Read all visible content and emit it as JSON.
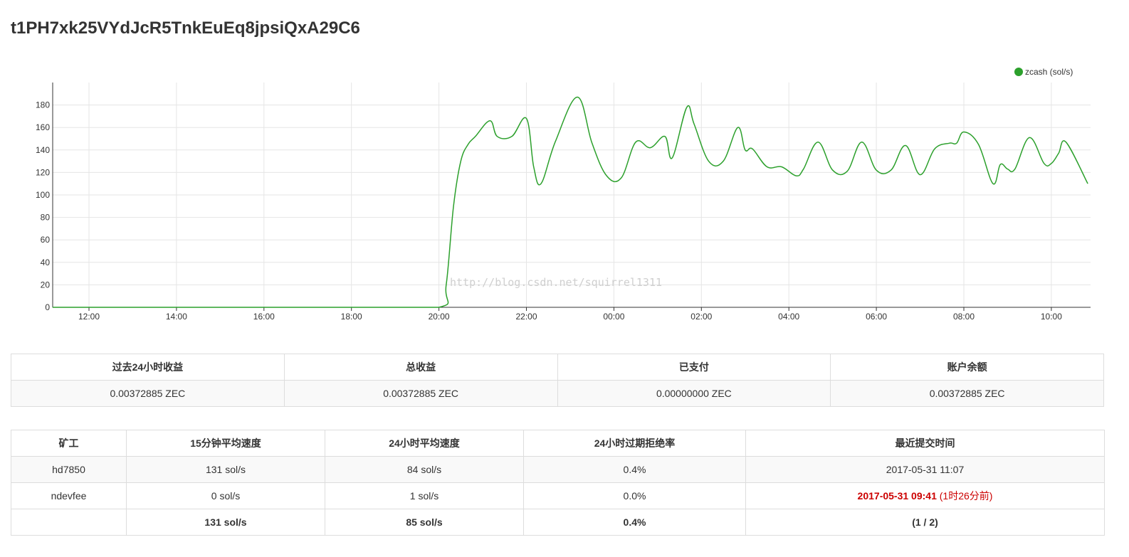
{
  "header": {
    "title": "t1PH7xk25VYdJcR5TnkEuEq8jpsiQxA29C6"
  },
  "chart_data": {
    "type": "line",
    "title": "",
    "xlabel": "",
    "ylabel": "",
    "legend_position": "top-right",
    "grid": true,
    "ylim": [
      0,
      200
    ],
    "yticks": [
      0,
      20,
      40,
      60,
      80,
      100,
      120,
      140,
      160,
      180
    ],
    "xtick_labels": [
      "12:00",
      "14:00",
      "16:00",
      "18:00",
      "20:00",
      "22:00",
      "00:00",
      "02:00",
      "04:00",
      "06:00",
      "08:00",
      "10:00"
    ],
    "series": [
      {
        "name": "zcash (sol/s)",
        "color": "#2ca02c",
        "x": [
          "11:10",
          "12:00",
          "14:00",
          "16:00",
          "18:00",
          "20:00",
          "20:10",
          "20:20",
          "20:30",
          "20:40",
          "20:50",
          "21:10",
          "21:20",
          "21:40",
          "22:00",
          "22:10",
          "22:20",
          "22:40",
          "23:10",
          "23:30",
          "23:50",
          "00:10",
          "00:30",
          "00:50",
          "01:10",
          "01:20",
          "01:40",
          "01:50",
          "02:10",
          "02:30",
          "02:50",
          "03:00",
          "03:10",
          "03:30",
          "03:50",
          "04:10",
          "04:20",
          "04:40",
          "05:00",
          "05:20",
          "05:40",
          "06:00",
          "06:20",
          "06:40",
          "07:00",
          "07:20",
          "07:40",
          "07:50",
          "08:00",
          "08:20",
          "08:40",
          "08:50",
          "09:00",
          "09:10",
          "09:30",
          "09:50",
          "10:00",
          "10:10",
          "10:20",
          "10:50"
        ],
        "y": [
          0,
          0,
          0,
          0,
          0,
          0,
          20,
          90,
          130,
          145,
          152,
          166,
          152,
          152,
          168,
          125,
          110,
          148,
          187,
          146,
          117,
          115,
          147,
          142,
          152,
          133,
          178,
          163,
          130,
          130,
          160,
          140,
          141,
          125,
          125,
          117,
          123,
          147,
          122,
          121,
          147,
          122,
          122,
          144,
          118,
          141,
          146,
          146,
          156,
          145,
          110,
          127,
          123,
          123,
          151,
          128,
          128,
          137,
          147,
          110
        ]
      }
    ]
  },
  "watermark": "http://blog.csdn.net/squirrel1311",
  "balance": {
    "headers": [
      "过去24小时收益",
      "总收益",
      "已支付",
      "账户余额"
    ],
    "values": [
      "0.00372885 ZEC",
      "0.00372885 ZEC",
      "0.00000000 ZEC",
      "0.00372885 ZEC"
    ]
  },
  "workers": {
    "headers": [
      "矿工",
      "15分钟平均速度",
      "24小时平均速度",
      "24小时过期拒绝率",
      "最近提交时间"
    ],
    "rows": [
      {
        "name": "hd7850",
        "avg15": "131 sol/s",
        "avg24": "84 sol/s",
        "reject": "0.4%",
        "last": "2017-05-31 11:07",
        "last_ago": ""
      },
      {
        "name": "ndevfee",
        "avg15": "0 sol/s",
        "avg24": "1 sol/s",
        "reject": "0.0%",
        "last": "2017-05-31 09:41",
        "last_ago": "(1时26分前)"
      }
    ],
    "totals": {
      "name": "",
      "avg15": "131 sol/s",
      "avg24": "85 sol/s",
      "reject": "0.4%",
      "count": "(1 / 2)"
    }
  }
}
